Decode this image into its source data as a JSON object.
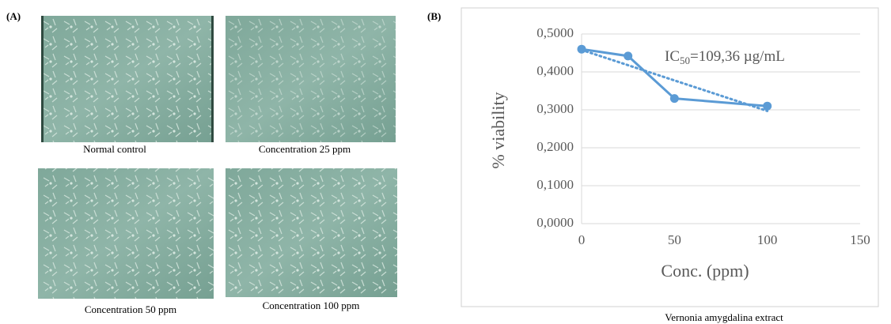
{
  "panel_a": {
    "label": "(A)",
    "captions": [
      "Normal control",
      "Concentration 25 ppm",
      "Concentration 50 ppm",
      "Concentration 100 ppm"
    ]
  },
  "panel_b": {
    "label": "(B)",
    "caption": "Vernonia amygdalina extract"
  },
  "chart_data": {
    "type": "line",
    "x_label": "Conc. (ppm)",
    "y_label": "% viability",
    "annotation": {
      "main": "IC",
      "sub": "50",
      "rest": "=109,36 µg/mL"
    },
    "x": [
      0,
      25,
      50,
      100
    ],
    "series": [
      {
        "color": "#5b9bd5",
        "values": [
          0.46,
          0.442,
          0.33,
          0.31
        ]
      }
    ],
    "trendline": {
      "x": [
        0,
        100
      ],
      "values": [
        0.458,
        0.297
      ],
      "color": "#5b9bd5"
    },
    "xlim": [
      0,
      150
    ],
    "xticks": [
      0,
      50,
      100,
      150
    ],
    "ylim": [
      0,
      0.5
    ],
    "yticks": [
      {
        "value": 0,
        "label": "0,0000"
      },
      {
        "value": 0.1,
        "label": "0,1000"
      },
      {
        "value": 0.2,
        "label": "0,2000"
      },
      {
        "value": 0.3,
        "label": "0,3000"
      },
      {
        "value": 0.4,
        "label": "0,4000"
      },
      {
        "value": 0.5,
        "label": "0,5000"
      }
    ],
    "grid": true
  }
}
